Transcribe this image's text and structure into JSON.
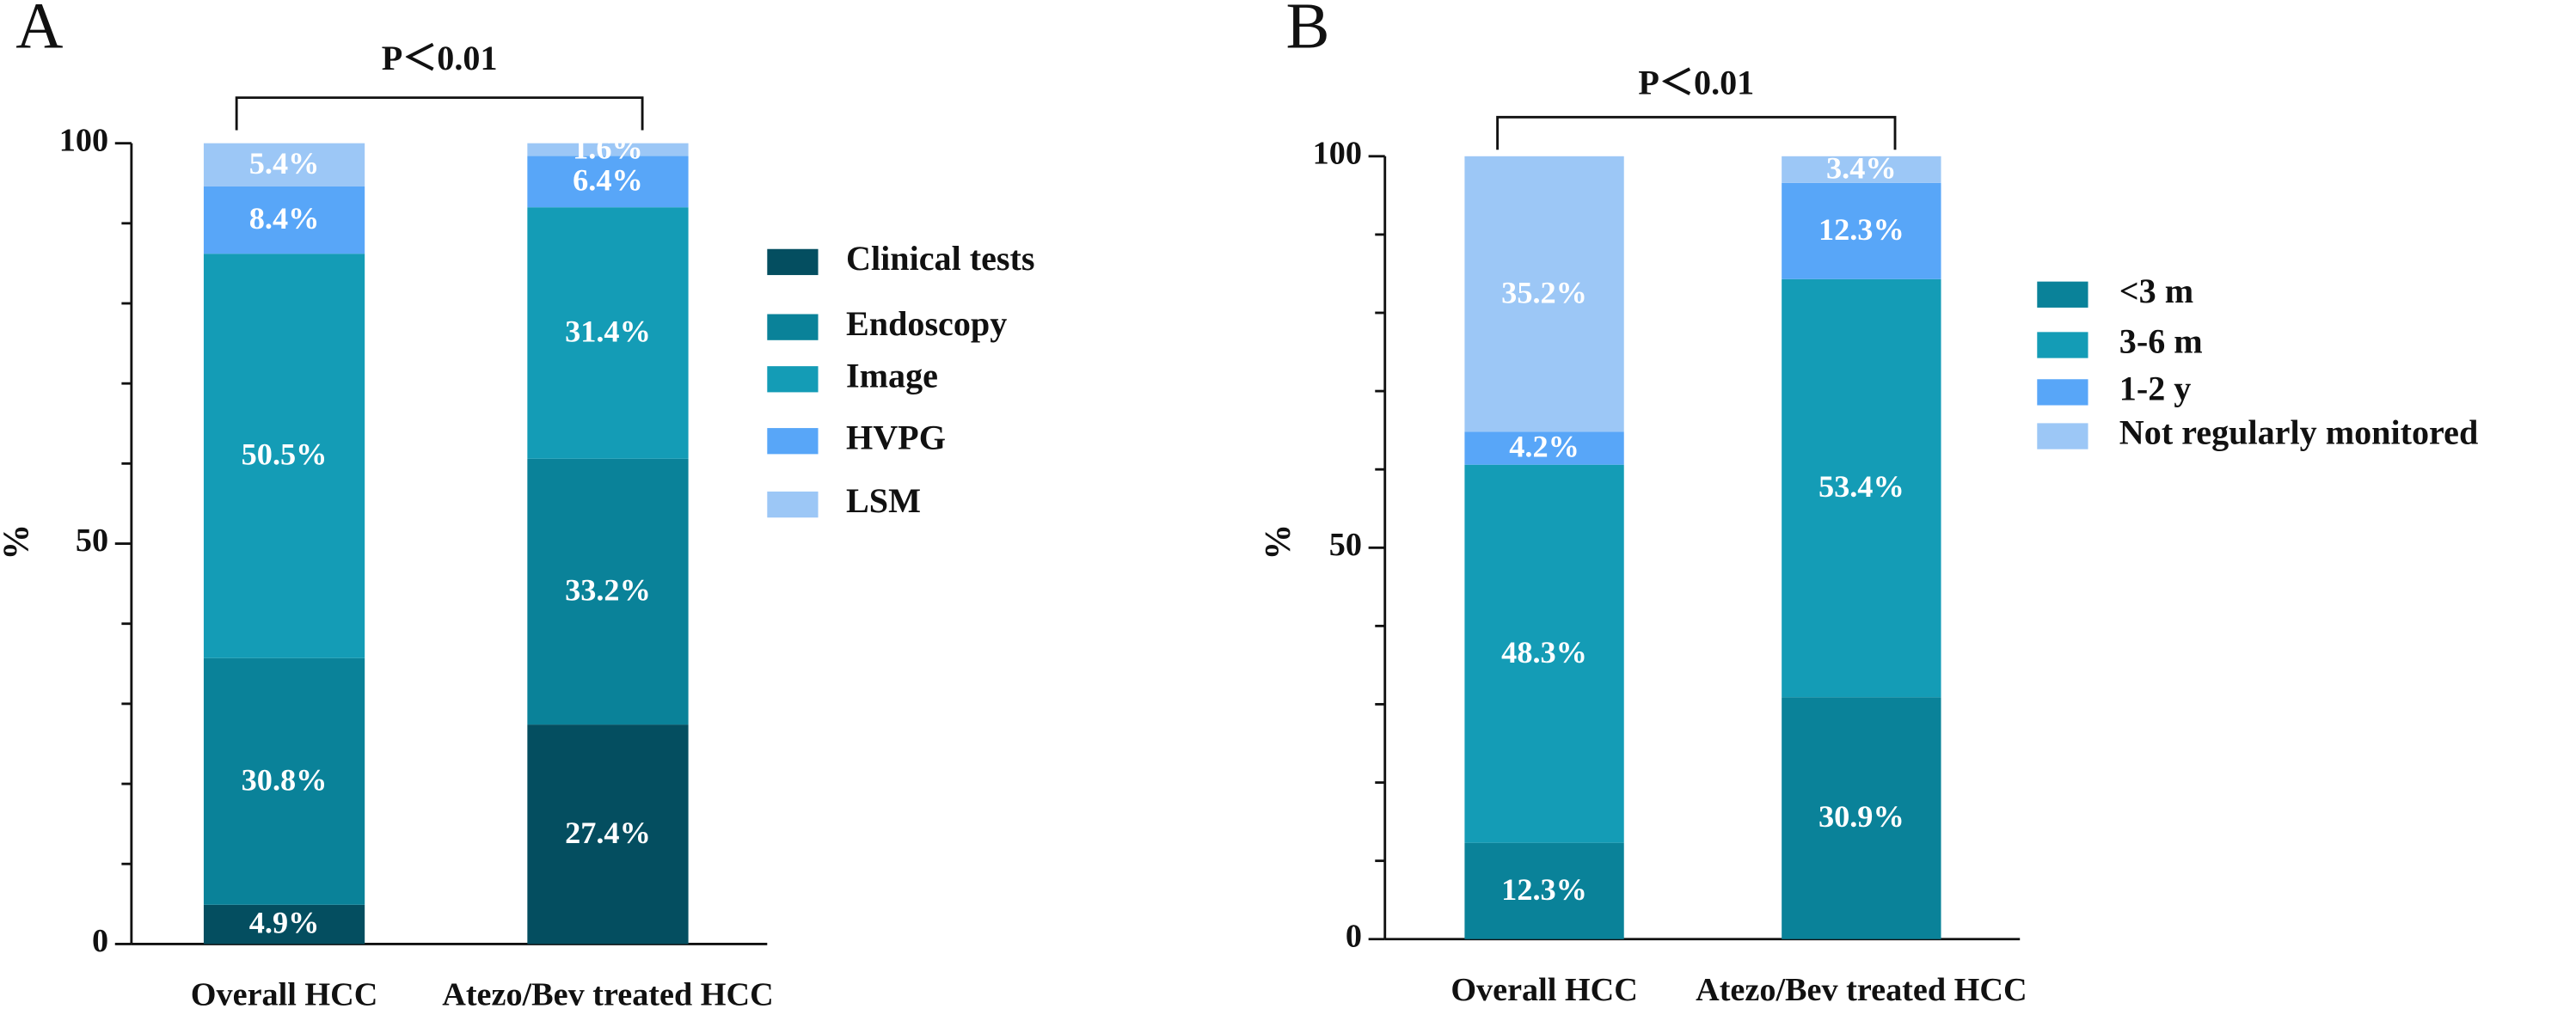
{
  "chart_data": [
    {
      "type": "stacked_bar",
      "panel": "A",
      "annotation": "P＜0.01",
      "ylabel": "%",
      "categories": [
        "Overall HCC",
        "Atezo/Bev treated HCC"
      ],
      "series": [
        {
          "name": "Clinical tests",
          "color": "#044e60",
          "values": [
            4.9,
            27.4
          ],
          "value_labels": [
            "4.9%",
            "27.4%"
          ]
        },
        {
          "name": "Endoscopy",
          "color": "#0a8299",
          "values": [
            30.8,
            33.2
          ],
          "value_labels": [
            "30.8%",
            "33.2%"
          ]
        },
        {
          "name": "Image",
          "color": "#149cb6",
          "values": [
            50.5,
            31.4
          ],
          "value_labels": [
            "50.5%",
            "31.4%"
          ]
        },
        {
          "name": "HVPG",
          "color": "#58a6f8",
          "values": [
            8.4,
            6.4
          ],
          "value_labels": [
            "8.4%",
            "6.4%"
          ]
        },
        {
          "name": "LSM",
          "color": "#9cc7f6",
          "values": [
            5.4,
            1.6
          ],
          "value_labels": [
            "5.4%",
            "1.6%"
          ]
        }
      ],
      "ylim": [
        0,
        100
      ],
      "yticks": [
        0,
        50,
        100
      ],
      "yminorticks": [
        10,
        20,
        30,
        40,
        60,
        70,
        80,
        90
      ]
    },
    {
      "type": "stacked_bar",
      "panel": "B",
      "annotation": "P＜0.01",
      "ylabel": "%",
      "categories": [
        "Overall HCC",
        "Atezo/Bev treated HCC"
      ],
      "series": [
        {
          "name": "<3 m",
          "color": "#0a8299",
          "values": [
            12.3,
            30.9
          ],
          "value_labels": [
            "12.3%",
            "30.9%"
          ]
        },
        {
          "name": "3-6 m",
          "color": "#149cb6",
          "values": [
            48.3,
            53.4
          ],
          "value_labels": [
            "48.3%",
            "53.4%"
          ]
        },
        {
          "name": "1-2 y",
          "color": "#58a6f8",
          "values": [
            4.2,
            12.3
          ],
          "value_labels": [
            "4.2%",
            "12.3%"
          ]
        },
        {
          "name": "Not regularly monitored",
          "color": "#9cc7f6",
          "values": [
            35.2,
            3.4
          ],
          "value_labels": [
            "35.2%",
            "3.4%"
          ]
        }
      ],
      "ylim": [
        0,
        100
      ],
      "yticks": [
        0,
        50,
        100
      ],
      "yminorticks": [
        10,
        20,
        30,
        40,
        60,
        70,
        80,
        90
      ]
    }
  ]
}
